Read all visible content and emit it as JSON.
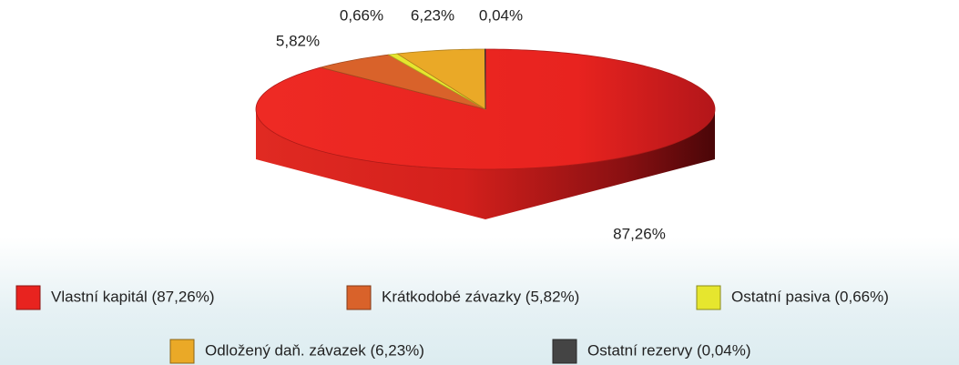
{
  "chart_data": {
    "type": "pie",
    "categories": [
      "Vlastní kapitál (87,26%)",
      "Krátkodobé závazky (5,82%)",
      "Ostatní pasiva (0,66%)",
      "Odložený daň. závazek (6,23%)",
      "Ostatní rezervy (0,04%)"
    ],
    "values": [
      87.26,
      5.82,
      0.66,
      6.23,
      0.04
    ],
    "value_labels": [
      "87,26%",
      "5,82%",
      "0,66%",
      "6,23%",
      "0,04%"
    ],
    "colors": [
      "#e8231f",
      "#d9622a",
      "#e6e62e",
      "#eaa927",
      "#444444"
    ]
  }
}
